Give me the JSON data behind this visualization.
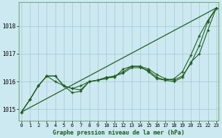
{
  "title": "Graphe pression niveau de la mer (hPa)",
  "bg_color": "#cce8f0",
  "grid_color": "#aaccd8",
  "line_color": "#1a5c1a",
  "xlim_min": -0.3,
  "xlim_max": 23.3,
  "ylim_min": 1014.6,
  "ylim_max": 1018.85,
  "yticks": [
    1015,
    1016,
    1017,
    1018
  ],
  "xticks": [
    0,
    1,
    2,
    3,
    4,
    5,
    6,
    7,
    8,
    9,
    10,
    11,
    12,
    13,
    14,
    15,
    16,
    17,
    18,
    19,
    20,
    21,
    22,
    23
  ],
  "straight_line": [
    1014.9,
    1018.65
  ],
  "line1": [
    1014.9,
    1015.35,
    1015.85,
    1016.2,
    1016.0,
    1015.85,
    1015.75,
    1015.85,
    1016.0,
    1016.05,
    1016.1,
    1016.2,
    1016.3,
    1016.5,
    1016.5,
    1016.4,
    1016.15,
    1016.05,
    1016.0,
    1016.15,
    1016.7,
    1017.0,
    1017.85,
    1018.65
  ],
  "line2": [
    1014.9,
    1015.35,
    1015.85,
    1016.2,
    1016.2,
    1015.85,
    1015.6,
    1015.65,
    1016.0,
    1016.05,
    1016.15,
    1016.15,
    1016.45,
    1016.55,
    1016.55,
    1016.35,
    1016.1,
    1016.05,
    1016.1,
    1016.35,
    1016.95,
    1017.65,
    1018.2,
    1018.65
  ],
  "line3": [
    1014.9,
    1015.35,
    1015.85,
    1016.2,
    1016.2,
    1015.85,
    1015.75,
    1015.7,
    1016.0,
    1016.05,
    1016.15,
    1016.2,
    1016.35,
    1016.55,
    1016.55,
    1016.45,
    1016.25,
    1016.1,
    1016.05,
    1016.2,
    1016.65,
    1017.3,
    1018.15,
    1018.65
  ]
}
